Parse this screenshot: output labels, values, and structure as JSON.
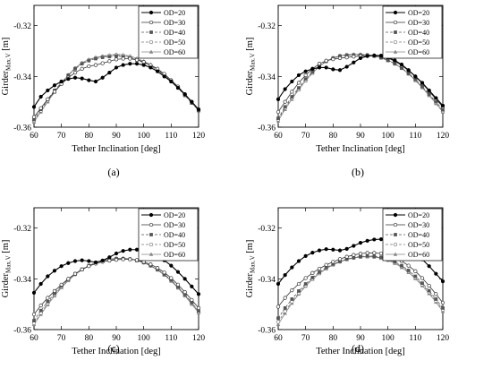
{
  "chart_data": [
    {
      "type": "line",
      "caption": "(a)",
      "xlabel": "Tether Inclination [deg]",
      "ylabel_main": "Girder",
      "ylabel_sub": "Max.V",
      "ylabel_unit": "[m]",
      "xlim": [
        60,
        120
      ],
      "ylim": [
        -0.36,
        -0.312
      ],
      "xticks": [
        "60",
        "70",
        "80",
        "90",
        "100",
        "110",
        "120"
      ],
      "yticks": [
        "-0.32",
        "-0.34",
        "-0.36"
      ],
      "x": [
        60,
        62.5,
        65,
        67.5,
        70,
        72.5,
        75,
        77.5,
        80,
        82.5,
        85,
        87.5,
        90,
        92.5,
        95,
        97.5,
        100,
        102.5,
        105,
        107.5,
        110,
        112.5,
        115,
        117.5,
        120
      ],
      "series": [
        {
          "name": "OD=20",
          "values": [
            -0.352,
            -0.348,
            -0.3455,
            -0.3435,
            -0.342,
            -0.341,
            -0.3405,
            -0.3408,
            -0.3415,
            -0.342,
            -0.3405,
            -0.3385,
            -0.3365,
            -0.3355,
            -0.335,
            -0.335,
            -0.3355,
            -0.3365,
            -0.338,
            -0.34,
            -0.342,
            -0.3445,
            -0.347,
            -0.35,
            -0.353
          ]
        },
        {
          "name": "OD=30",
          "values": [
            -0.356,
            -0.3525,
            -0.349,
            -0.346,
            -0.343,
            -0.3405,
            -0.3385,
            -0.337,
            -0.336,
            -0.3355,
            -0.3348,
            -0.334,
            -0.3333,
            -0.333,
            -0.333,
            -0.3335,
            -0.3343,
            -0.3355,
            -0.337,
            -0.339,
            -0.3415,
            -0.344,
            -0.347,
            -0.35,
            -0.353
          ]
        },
        {
          "name": "OD=40",
          "values": [
            -0.357,
            -0.353,
            -0.349,
            -0.3455,
            -0.3425,
            -0.3395,
            -0.337,
            -0.335,
            -0.3338,
            -0.333,
            -0.3325,
            -0.3322,
            -0.332,
            -0.3322,
            -0.3327,
            -0.3335,
            -0.3345,
            -0.3358,
            -0.3375,
            -0.3395,
            -0.342,
            -0.3445,
            -0.3475,
            -0.3505,
            -0.3535
          ]
        },
        {
          "name": "OD=50",
          "values": [
            -0.3575,
            -0.3535,
            -0.3495,
            -0.346,
            -0.3425,
            -0.3395,
            -0.3368,
            -0.3348,
            -0.3335,
            -0.3327,
            -0.3322,
            -0.3318,
            -0.3316,
            -0.3318,
            -0.3323,
            -0.3332,
            -0.3343,
            -0.3356,
            -0.3373,
            -0.3393,
            -0.3418,
            -0.3443,
            -0.3473,
            -0.3503,
            -0.3535
          ]
        },
        {
          "name": "OD=60",
          "values": [
            -0.358,
            -0.354,
            -0.35,
            -0.3462,
            -0.3427,
            -0.3395,
            -0.3367,
            -0.3346,
            -0.3333,
            -0.3325,
            -0.332,
            -0.3316,
            -0.3313,
            -0.3315,
            -0.332,
            -0.3329,
            -0.334,
            -0.3354,
            -0.3371,
            -0.3391,
            -0.3416,
            -0.3441,
            -0.3471,
            -0.3501,
            -0.3533
          ]
        }
      ]
    },
    {
      "type": "line",
      "caption": "(b)",
      "xlabel": "Tether Inclination [deg]",
      "ylabel_main": "Girder",
      "ylabel_sub": "Max.V",
      "ylabel_unit": "[m]",
      "xlim": [
        60,
        120
      ],
      "ylim": [
        -0.36,
        -0.312
      ],
      "xticks": [
        "60",
        "70",
        "80",
        "90",
        "100",
        "110",
        "120"
      ],
      "yticks": [
        "-0.32",
        "-0.34",
        "-0.36"
      ],
      "x": [
        60,
        62.5,
        65,
        67.5,
        70,
        72.5,
        75,
        77.5,
        80,
        82.5,
        85,
        87.5,
        90,
        92.5,
        95,
        97.5,
        100,
        102.5,
        105,
        107.5,
        110,
        112.5,
        115,
        117.5,
        120
      ],
      "series": [
        {
          "name": "OD=20",
          "values": [
            -0.349,
            -0.345,
            -0.342,
            -0.3395,
            -0.338,
            -0.337,
            -0.3365,
            -0.3365,
            -0.3372,
            -0.3375,
            -0.3362,
            -0.3345,
            -0.3328,
            -0.332,
            -0.3317,
            -0.3318,
            -0.3325,
            -0.3337,
            -0.3353,
            -0.3375,
            -0.34,
            -0.3425,
            -0.3455,
            -0.3485,
            -0.3515
          ]
        },
        {
          "name": "OD=30",
          "values": [
            -0.354,
            -0.35,
            -0.346,
            -0.3425,
            -0.3395,
            -0.337,
            -0.335,
            -0.3338,
            -0.3332,
            -0.3328,
            -0.3325,
            -0.3322,
            -0.332,
            -0.3318,
            -0.3318,
            -0.332,
            -0.3328,
            -0.334,
            -0.3357,
            -0.3377,
            -0.34,
            -0.3428,
            -0.3458,
            -0.349,
            -0.352
          ]
        },
        {
          "name": "OD=40",
          "values": [
            -0.3565,
            -0.352,
            -0.348,
            -0.3445,
            -0.341,
            -0.3382,
            -0.3358,
            -0.334,
            -0.3328,
            -0.332,
            -0.3317,
            -0.3316,
            -0.3316,
            -0.3317,
            -0.332,
            -0.3327,
            -0.3337,
            -0.335,
            -0.3367,
            -0.3388,
            -0.3412,
            -0.344,
            -0.347,
            -0.35,
            -0.3532
          ]
        },
        {
          "name": "OD=50",
          "values": [
            -0.357,
            -0.3525,
            -0.3485,
            -0.345,
            -0.3415,
            -0.3385,
            -0.336,
            -0.334,
            -0.3327,
            -0.3319,
            -0.3315,
            -0.3314,
            -0.3314,
            -0.3315,
            -0.3319,
            -0.3326,
            -0.3336,
            -0.335,
            -0.3367,
            -0.3389,
            -0.3414,
            -0.3442,
            -0.3472,
            -0.3504,
            -0.3537
          ]
        },
        {
          "name": "OD=60",
          "values": [
            -0.3575,
            -0.353,
            -0.349,
            -0.3452,
            -0.3417,
            -0.3387,
            -0.3361,
            -0.3341,
            -0.3327,
            -0.3318,
            -0.3314,
            -0.3313,
            -0.3313,
            -0.3314,
            -0.3318,
            -0.3325,
            -0.3336,
            -0.335,
            -0.3368,
            -0.339,
            -0.3416,
            -0.3444,
            -0.3475,
            -0.3507,
            -0.354
          ]
        }
      ]
    },
    {
      "type": "line",
      "caption": "(c)",
      "xlabel": "Tether Inclination [deg]",
      "ylabel_main": "Girder",
      "ylabel_sub": "Max.V",
      "ylabel_unit": "[m]",
      "xlim": [
        60,
        120
      ],
      "ylim": [
        -0.36,
        -0.312
      ],
      "xticks": [
        "60",
        "70",
        "80",
        "90",
        "100",
        "110",
        "120"
      ],
      "yticks": [
        "-0.32",
        "-0.34",
        "-0.36"
      ],
      "x": [
        60,
        62.5,
        65,
        67.5,
        70,
        72.5,
        75,
        77.5,
        80,
        82.5,
        85,
        87.5,
        90,
        92.5,
        95,
        97.5,
        100,
        102.5,
        105,
        107.5,
        110,
        112.5,
        115,
        117.5,
        120
      ],
      "series": [
        {
          "name": "OD=20",
          "values": [
            -0.3455,
            -0.342,
            -0.339,
            -0.3368,
            -0.335,
            -0.3338,
            -0.333,
            -0.3327,
            -0.333,
            -0.3335,
            -0.3328,
            -0.3315,
            -0.33,
            -0.329,
            -0.3285,
            -0.3285,
            -0.329,
            -0.3298,
            -0.331,
            -0.3327,
            -0.3348,
            -0.3373,
            -0.34,
            -0.343,
            -0.346
          ]
        },
        {
          "name": "OD=30",
          "values": [
            -0.354,
            -0.3505,
            -0.3475,
            -0.3448,
            -0.3423,
            -0.34,
            -0.338,
            -0.3363,
            -0.335,
            -0.334,
            -0.3333,
            -0.3328,
            -0.3325,
            -0.3323,
            -0.3323,
            -0.3326,
            -0.3333,
            -0.3343,
            -0.3357,
            -0.3375,
            -0.3397,
            -0.3423,
            -0.3452,
            -0.3483,
            -0.3515
          ]
        },
        {
          "name": "OD=40",
          "values": [
            -0.3565,
            -0.3525,
            -0.349,
            -0.3458,
            -0.3428,
            -0.3402,
            -0.338,
            -0.3362,
            -0.3348,
            -0.3337,
            -0.3329,
            -0.3324,
            -0.3321,
            -0.3321,
            -0.3323,
            -0.3328,
            -0.3336,
            -0.3348,
            -0.3363,
            -0.3382,
            -0.3405,
            -0.3432,
            -0.3462,
            -0.3494,
            -0.3527
          ]
        },
        {
          "name": "OD=50",
          "values": [
            -0.3575,
            -0.3535,
            -0.3497,
            -0.3463,
            -0.3432,
            -0.3405,
            -0.3382,
            -0.3363,
            -0.3348,
            -0.3336,
            -0.3328,
            -0.3323,
            -0.332,
            -0.332,
            -0.3322,
            -0.3327,
            -0.3336,
            -0.3348,
            -0.3364,
            -0.3384,
            -0.3407,
            -0.3434,
            -0.3464,
            -0.3497,
            -0.3531
          ]
        },
        {
          "name": "OD=60",
          "values": [
            -0.358,
            -0.354,
            -0.3502,
            -0.3467,
            -0.3435,
            -0.3407,
            -0.3383,
            -0.3364,
            -0.3348,
            -0.3336,
            -0.3328,
            -0.3322,
            -0.3319,
            -0.3319,
            -0.3321,
            -0.3327,
            -0.3336,
            -0.3349,
            -0.3365,
            -0.3385,
            -0.3409,
            -0.3436,
            -0.3467,
            -0.35,
            -0.3534
          ]
        }
      ]
    },
    {
      "type": "line",
      "caption": "(d)",
      "xlabel": "Tether Inclination [deg]",
      "ylabel_main": "Girder",
      "ylabel_sub": "Max.V",
      "ylabel_unit": "[m]",
      "xlim": [
        60,
        120
      ],
      "ylim": [
        -0.36,
        -0.312
      ],
      "xticks": [
        "60",
        "70",
        "80",
        "90",
        "100",
        "110",
        "120"
      ],
      "yticks": [
        "-0.32",
        "-0.34",
        "-0.36"
      ],
      "x": [
        60,
        62.5,
        65,
        67.5,
        70,
        72.5,
        75,
        77.5,
        80,
        82.5,
        85,
        87.5,
        90,
        92.5,
        95,
        97.5,
        100,
        102.5,
        105,
        107.5,
        110,
        112.5,
        115,
        117.5,
        120
      ],
      "series": [
        {
          "name": "OD=20",
          "values": [
            -0.342,
            -0.3385,
            -0.3355,
            -0.333,
            -0.331,
            -0.3297,
            -0.3288,
            -0.3283,
            -0.3285,
            -0.3288,
            -0.3282,
            -0.327,
            -0.3258,
            -0.325,
            -0.3245,
            -0.3244,
            -0.3247,
            -0.3254,
            -0.3265,
            -0.328,
            -0.33,
            -0.3323,
            -0.335,
            -0.338,
            -0.341
          ]
        },
        {
          "name": "OD=30",
          "values": [
            -0.351,
            -0.3475,
            -0.3445,
            -0.342,
            -0.3397,
            -0.3377,
            -0.336,
            -0.3345,
            -0.3333,
            -0.3322,
            -0.3313,
            -0.3306,
            -0.3301,
            -0.3298,
            -0.3298,
            -0.33,
            -0.3306,
            -0.3316,
            -0.333,
            -0.3348,
            -0.337,
            -0.3397,
            -0.3427,
            -0.346,
            -0.3494
          ]
        },
        {
          "name": "OD=40",
          "values": [
            -0.3555,
            -0.3515,
            -0.348,
            -0.3448,
            -0.342,
            -0.3395,
            -0.3374,
            -0.3356,
            -0.3342,
            -0.3331,
            -0.3322,
            -0.3316,
            -0.3312,
            -0.331,
            -0.3311,
            -0.3315,
            -0.3322,
            -0.3333,
            -0.3348,
            -0.3367,
            -0.339,
            -0.3417,
            -0.3447,
            -0.348,
            -0.3515
          ]
        },
        {
          "name": "OD=50",
          "values": [
            -0.357,
            -0.3528,
            -0.349,
            -0.3456,
            -0.3426,
            -0.34,
            -0.3378,
            -0.3359,
            -0.3344,
            -0.3332,
            -0.3323,
            -0.3317,
            -0.3313,
            -0.3312,
            -0.3313,
            -0.3317,
            -0.3324,
            -0.3336,
            -0.3351,
            -0.3371,
            -0.3395,
            -0.3422,
            -0.3453,
            -0.3487,
            -0.3522
          ]
        },
        {
          "name": "OD=60",
          "values": [
            -0.358,
            -0.3536,
            -0.3496,
            -0.346,
            -0.3429,
            -0.3402,
            -0.3379,
            -0.336,
            -0.3345,
            -0.3333,
            -0.3324,
            -0.3318,
            -0.3314,
            -0.3313,
            -0.3314,
            -0.3319,
            -0.3327,
            -0.3339,
            -0.3355,
            -0.3375,
            -0.3399,
            -0.3427,
            -0.3458,
            -0.3492,
            -0.3528
          ]
        }
      ]
    }
  ],
  "legend_entries": [
    "OD=20",
    "OD=30",
    "OD=40",
    "OD=50",
    "OD=60"
  ],
  "legend_placement": "top-right",
  "grid": false,
  "series_styles": [
    {
      "color": "#000000",
      "marker": "filled-circle",
      "dash": "solid"
    },
    {
      "color": "#333333",
      "marker": "open-circle",
      "dash": "solid"
    },
    {
      "color": "#555555",
      "marker": "filled-square",
      "dash": "dashed"
    },
    {
      "color": "#777777",
      "marker": "open-circle",
      "dash": "dashed"
    },
    {
      "color": "#888888",
      "marker": "triangle",
      "dash": "solid"
    }
  ]
}
